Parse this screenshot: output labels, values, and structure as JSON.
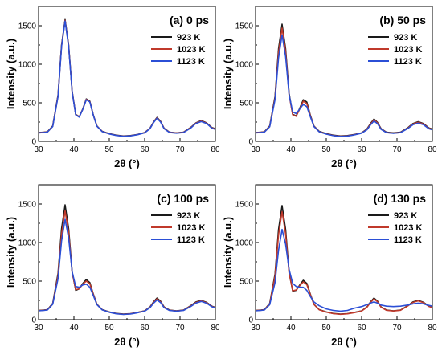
{
  "chart_data": [
    {
      "type": "line",
      "title": "(a) 0 ps",
      "xlabel": "2θ (°)",
      "ylabel": "Intensity (a.u.)",
      "xlim": [
        30,
        80
      ],
      "ylim": [
        0,
        1750
      ],
      "xticks": [
        30,
        40,
        50,
        60,
        70,
        80
      ],
      "yticks": [
        0,
        500,
        1000,
        1500
      ],
      "legend": "top-right",
      "series": [
        {
          "name": "923 K",
          "color": "#1a1a1a",
          "x": [
            30,
            31.5,
            32.5,
            34,
            35.5,
            36.5,
            37.5,
            38.5,
            39.5,
            40.5,
            41.5,
            42.5,
            43.5,
            44.5,
            45.5,
            46.5,
            48,
            50,
            52,
            54,
            56,
            58,
            60,
            61.5,
            62.5,
            63.5,
            64.5,
            65.5,
            67,
            69,
            71,
            73,
            74.5,
            76,
            77.5,
            79,
            80
          ],
          "y": [
            115,
            120,
            125,
            200,
            600,
            1250,
            1580,
            1250,
            650,
            350,
            320,
            420,
            550,
            520,
            340,
            200,
            130,
            100,
            80,
            70,
            75,
            90,
            115,
            170,
            250,
            310,
            260,
            170,
            120,
            110,
            120,
            180,
            240,
            270,
            240,
            180,
            165
          ]
        },
        {
          "name": "1023 K",
          "color": "#c0392b",
          "x": [
            30,
            31.5,
            32.5,
            34,
            35.5,
            36.5,
            37.5,
            38.5,
            39.5,
            40.5,
            41.5,
            42.5,
            43.5,
            44.5,
            45.5,
            46.5,
            48,
            50,
            52,
            54,
            56,
            58,
            60,
            61.5,
            62.5,
            63.5,
            64.5,
            65.5,
            67,
            69,
            71,
            73,
            74.5,
            76,
            77.5,
            79,
            80
          ],
          "y": [
            112,
            118,
            122,
            195,
            590,
            1240,
            1570,
            1240,
            645,
            348,
            318,
            418,
            545,
            515,
            338,
            198,
            128,
            98,
            78,
            68,
            73,
            88,
            112,
            168,
            246,
            305,
            255,
            168,
            118,
            108,
            118,
            176,
            236,
            262,
            236,
            176,
            160
          ]
        },
        {
          "name": "1123 K",
          "color": "#2b4fd6",
          "x": [
            30,
            31.5,
            32.5,
            34,
            35.5,
            36.5,
            37.5,
            38.5,
            39.5,
            40.5,
            41.5,
            42.5,
            43.5,
            44.5,
            45.5,
            46.5,
            48,
            50,
            52,
            54,
            56,
            58,
            60,
            61.5,
            62.5,
            63.5,
            64.5,
            65.5,
            67,
            69,
            71,
            73,
            74.5,
            76,
            77.5,
            79,
            80
          ],
          "y": [
            110,
            116,
            120,
            192,
            580,
            1230,
            1560,
            1230,
            640,
            345,
            315,
            415,
            540,
            510,
            335,
            196,
            126,
            96,
            76,
            66,
            71,
            86,
            110,
            165,
            242,
            300,
            250,
            165,
            116,
            106,
            116,
            172,
            232,
            256,
            232,
            172,
            155
          ]
        }
      ]
    },
    {
      "type": "line",
      "title": "(b) 50 ps",
      "xlabel": "2θ (°)",
      "ylabel": "Intensity (a.u.)",
      "xlim": [
        30,
        80
      ],
      "ylim": [
        0,
        1750
      ],
      "xticks": [
        30,
        40,
        50,
        60,
        70,
        80
      ],
      "yticks": [
        0,
        500,
        1000,
        1500
      ],
      "legend": "top-right",
      "series": [
        {
          "name": "923 K",
          "color": "#1a1a1a",
          "x": [
            30,
            31.5,
            32.5,
            34,
            35.5,
            36.5,
            37.5,
            38.5,
            39.5,
            40.5,
            41.5,
            42.5,
            43.5,
            44.5,
            45.5,
            46.5,
            48,
            50,
            52,
            54,
            56,
            58,
            60,
            61.5,
            62.5,
            63.5,
            64.5,
            65.5,
            67,
            69,
            71,
            73,
            74.5,
            76,
            77.5,
            79,
            80
          ],
          "y": [
            115,
            120,
            125,
            200,
            580,
            1200,
            1520,
            1200,
            620,
            350,
            330,
            430,
            540,
            510,
            340,
            200,
            130,
            100,
            80,
            70,
            75,
            90,
            110,
            160,
            230,
            290,
            245,
            165,
            120,
            110,
            120,
            175,
            230,
            255,
            230,
            175,
            160
          ]
        },
        {
          "name": "1023 K",
          "color": "#c0392b",
          "x": [
            30,
            31.5,
            32.5,
            34,
            35.5,
            36.5,
            37.5,
            38.5,
            39.5,
            40.5,
            41.5,
            42.5,
            43.5,
            44.5,
            45.5,
            46.5,
            48,
            50,
            52,
            54,
            56,
            58,
            60,
            61.5,
            62.5,
            63.5,
            64.5,
            65.5,
            67,
            69,
            71,
            73,
            74.5,
            76,
            77.5,
            79,
            80
          ],
          "y": [
            112,
            118,
            122,
            195,
            560,
            1150,
            1470,
            1160,
            600,
            345,
            325,
            420,
            520,
            490,
            332,
            196,
            126,
            96,
            76,
            66,
            71,
            86,
            108,
            155,
            222,
            280,
            238,
            160,
            116,
            106,
            116,
            170,
            224,
            248,
            224,
            170,
            155
          ]
        },
        {
          "name": "1123 K",
          "color": "#2b4fd6",
          "x": [
            30,
            31.5,
            32.5,
            34,
            35.5,
            36.5,
            37.5,
            38.5,
            39.5,
            40.5,
            41.5,
            42.5,
            43.5,
            44.5,
            45.5,
            46.5,
            48,
            50,
            52,
            54,
            56,
            58,
            60,
            61.5,
            62.5,
            63.5,
            64.5,
            65.5,
            67,
            69,
            71,
            73,
            74.5,
            76,
            77.5,
            79,
            80
          ],
          "y": [
            110,
            116,
            120,
            190,
            540,
            1080,
            1380,
            1100,
            600,
            380,
            360,
            420,
            480,
            450,
            320,
            192,
            124,
            94,
            74,
            64,
            69,
            84,
            106,
            150,
            212,
            265,
            228,
            155,
            114,
            104,
            114,
            165,
            216,
            238,
            216,
            165,
            150
          ]
        }
      ]
    },
    {
      "type": "line",
      "title": "(c) 100 ps",
      "xlabel": "2θ (°)",
      "ylabel": "Intensity (a.u.)",
      "xlim": [
        30,
        80
      ],
      "ylim": [
        0,
        1750
      ],
      "xticks": [
        30,
        40,
        50,
        60,
        70,
        80
      ],
      "yticks": [
        0,
        500,
        1000,
        1500
      ],
      "legend": "top-right",
      "series": [
        {
          "name": "923 K",
          "color": "#1a1a1a",
          "x": [
            30,
            31.5,
            32.5,
            34,
            35.5,
            36.5,
            37.5,
            38.5,
            39.5,
            40.5,
            41.5,
            42.5,
            43.5,
            44.5,
            45.5,
            46.5,
            48,
            50,
            52,
            54,
            56,
            58,
            60,
            61.5,
            62.5,
            63.5,
            64.5,
            65.5,
            67,
            69,
            71,
            73,
            74.5,
            76,
            77.5,
            79,
            80
          ],
          "y": [
            120,
            125,
            130,
            210,
            600,
            1180,
            1490,
            1180,
            620,
            380,
            400,
            470,
            520,
            480,
            330,
            200,
            130,
            100,
            80,
            72,
            78,
            95,
            115,
            165,
            230,
            280,
            240,
            165,
            125,
            115,
            125,
            180,
            230,
            250,
            225,
            175,
            160
          ]
        },
        {
          "name": "1023 K",
          "color": "#c0392b",
          "x": [
            30,
            31.5,
            32.5,
            34,
            35.5,
            36.5,
            37.5,
            38.5,
            39.5,
            40.5,
            41.5,
            42.5,
            43.5,
            44.5,
            45.5,
            46.5,
            48,
            50,
            52,
            54,
            56,
            58,
            60,
            61.5,
            62.5,
            63.5,
            64.5,
            65.5,
            67,
            69,
            71,
            73,
            74.5,
            76,
            77.5,
            79,
            80
          ],
          "y": [
            118,
            122,
            128,
            205,
            570,
            1110,
            1410,
            1130,
            610,
            390,
            400,
            460,
            500,
            465,
            325,
            198,
            128,
            98,
            78,
            70,
            76,
            92,
            112,
            160,
            222,
            270,
            232,
            160,
            122,
            112,
            122,
            176,
            224,
            244,
            220,
            172,
            156
          ]
        },
        {
          "name": "1123 K",
          "color": "#2b4fd6",
          "x": [
            30,
            31.5,
            32.5,
            34,
            35.5,
            36.5,
            37.5,
            38.5,
            39.5,
            40.5,
            41.5,
            42.5,
            43.5,
            44.5,
            45.5,
            46.5,
            48,
            50,
            52,
            54,
            56,
            58,
            60,
            61.5,
            62.5,
            63.5,
            64.5,
            65.5,
            67,
            69,
            71,
            73,
            74.5,
            76,
            77.5,
            79,
            80
          ],
          "y": [
            115,
            120,
            125,
            200,
            530,
            1020,
            1300,
            1060,
            620,
            430,
            420,
            450,
            460,
            420,
            310,
            195,
            126,
            96,
            76,
            68,
            74,
            90,
            110,
            155,
            212,
            255,
            222,
            155,
            120,
            110,
            120,
            170,
            216,
            236,
            214,
            168,
            152
          ]
        }
      ]
    },
    {
      "type": "line",
      "title": "(d) 130 ps",
      "xlabel": "2θ (°)",
      "ylabel": "Intensity (a.u.)",
      "xlim": [
        30,
        80
      ],
      "ylim": [
        0,
        1750
      ],
      "xticks": [
        30,
        40,
        50,
        60,
        70,
        80
      ],
      "yticks": [
        0,
        500,
        1000,
        1500
      ],
      "legend": "top-right",
      "series": [
        {
          "name": "923 K",
          "color": "#1a1a1a",
          "x": [
            30,
            31.5,
            32.5,
            34,
            35.5,
            36.5,
            37.5,
            38.5,
            39.5,
            40.5,
            41.5,
            42.5,
            43.5,
            44.5,
            45.5,
            46.5,
            48,
            50,
            52,
            54,
            56,
            58,
            60,
            61.5,
            62.5,
            63.5,
            64.5,
            65.5,
            67,
            69,
            71,
            73,
            74.5,
            76,
            77.5,
            79,
            80
          ],
          "y": [
            120,
            125,
            130,
            210,
            590,
            1170,
            1480,
            1170,
            610,
            370,
            380,
            450,
            510,
            470,
            330,
            200,
            130,
            100,
            80,
            72,
            78,
            95,
            115,
            165,
            230,
            280,
            240,
            165,
            125,
            115,
            125,
            180,
            230,
            250,
            225,
            175,
            160
          ]
        },
        {
          "name": "1023 K",
          "color": "#c0392b",
          "x": [
            30,
            31.5,
            32.5,
            34,
            35.5,
            36.5,
            37.5,
            38.5,
            39.5,
            40.5,
            41.5,
            42.5,
            43.5,
            44.5,
            45.5,
            46.5,
            48,
            50,
            52,
            54,
            56,
            58,
            60,
            61.5,
            62.5,
            63.5,
            64.5,
            65.5,
            67,
            69,
            71,
            73,
            74.5,
            76,
            77.5,
            79,
            80
          ],
          "y": [
            118,
            122,
            128,
            205,
            560,
            1100,
            1400,
            1110,
            600,
            375,
            385,
            440,
            490,
            455,
            325,
            198,
            128,
            98,
            78,
            70,
            76,
            92,
            112,
            160,
            222,
            270,
            232,
            160,
            122,
            112,
            122,
            176,
            224,
            244,
            220,
            172,
            156
          ]
        },
        {
          "name": "1123 K",
          "color": "#2b4fd6",
          "x": [
            30,
            31.5,
            32.5,
            34,
            35.5,
            36.5,
            37.5,
            38.5,
            39.5,
            40.5,
            41.5,
            42.5,
            43.5,
            44.5,
            45.5,
            46.5,
            48,
            50,
            52,
            54,
            56,
            58,
            60,
            61.5,
            62.5,
            63.5,
            64.5,
            65.5,
            67,
            69,
            71,
            73,
            74.5,
            76,
            77.5,
            79,
            80
          ],
          "y": [
            115,
            120,
            125,
            195,
            480,
            900,
            1170,
            980,
            650,
            470,
            430,
            420,
            420,
            380,
            300,
            230,
            180,
            140,
            120,
            110,
            120,
            150,
            170,
            195,
            215,
            230,
            215,
            190,
            175,
            170,
            175,
            190,
            205,
            215,
            205,
            185,
            175
          ]
        }
      ]
    }
  ]
}
